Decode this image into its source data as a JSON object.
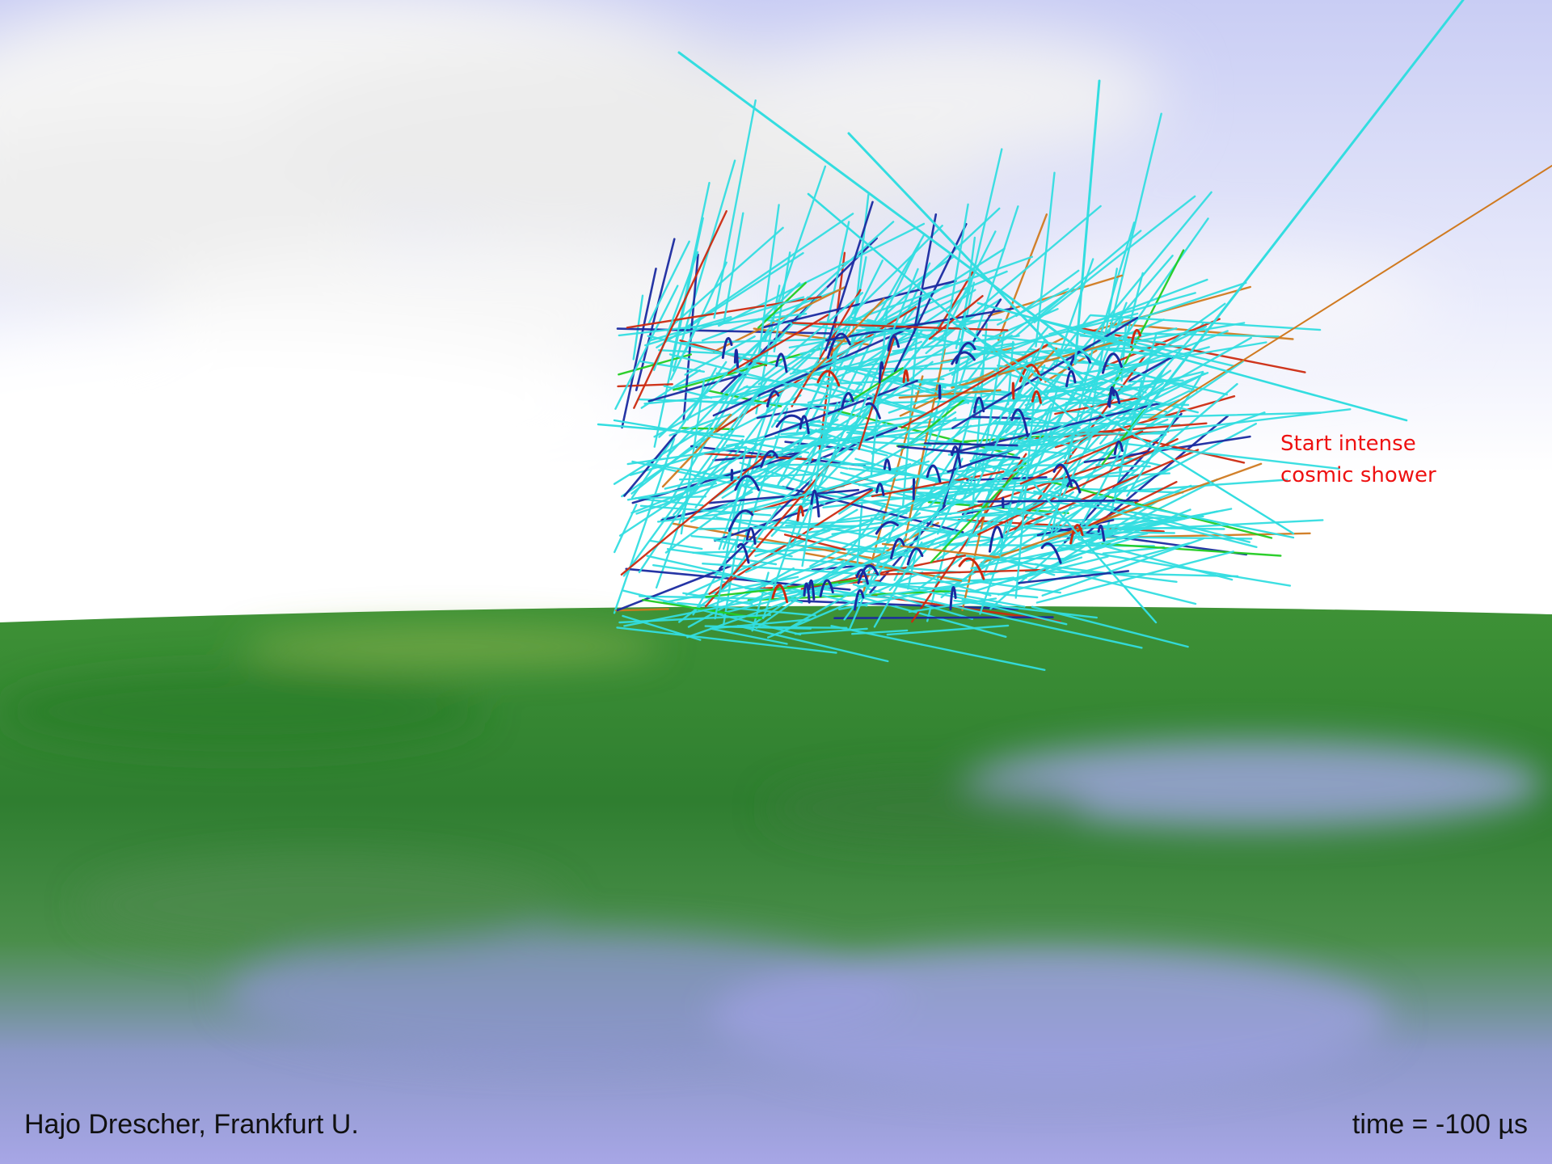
{
  "scene": {
    "annotation": "Start intense\ncosmic shower",
    "credit": "Hajo Drescher, Frankfurt U.",
    "time_readout": "time = -100 µs"
  },
  "colors": {
    "sky": "#cdd3f5",
    "cloud": "#f2f2f2",
    "horizon": "#ffffff",
    "ground": "#3f8f3a",
    "ground_reflection": "#9aa2e0",
    "track_cyan": "#33dde0",
    "track_blue": "#1a2aa0",
    "track_red": "#cc2a10",
    "track_orange": "#d07a20",
    "track_green": "#22cc22",
    "annotation_text": "#ee1111"
  }
}
